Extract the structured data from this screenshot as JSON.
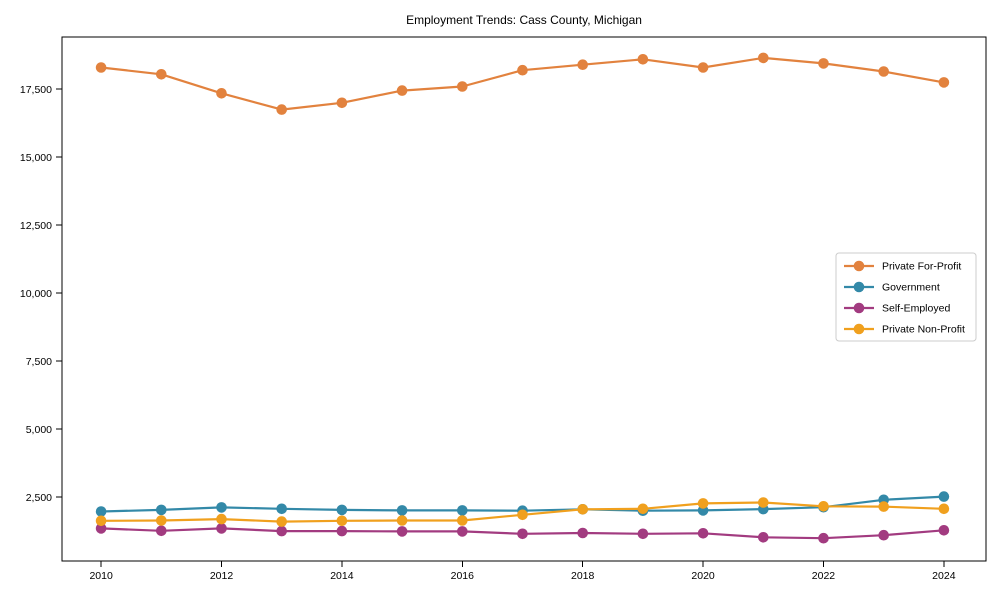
{
  "chart_data": {
    "type": "line",
    "title": "Employment Trends: Cass County, Michigan",
    "xlabel": "",
    "ylabel": "",
    "grid": false,
    "legend_position": "center-right",
    "xlim": [
      2009.35,
      2024.7
    ],
    "ylim": [
      150,
      19420
    ],
    "x": [
      2010,
      2011,
      2012,
      2013,
      2014,
      2015,
      2016,
      2017,
      2018,
      2019,
      2020,
      2021,
      2022,
      2023,
      2024
    ],
    "x_ticks": [
      2010,
      2012,
      2014,
      2016,
      2018,
      2020,
      2022,
      2024
    ],
    "x_tick_labels": [
      "2010",
      "2012",
      "2014",
      "2016",
      "2018",
      "2020",
      "2022",
      "2024"
    ],
    "y_ticks": [
      2500,
      5000,
      7500,
      10000,
      12500,
      15000,
      17500
    ],
    "y_tick_labels": [
      "2,500",
      "5,000",
      "7,500",
      "10,000",
      "12,500",
      "15,000",
      "17,500"
    ],
    "series": [
      {
        "name": "Private For-Profit",
        "color": "#e2823e",
        "values": [
          18300,
          18050,
          17350,
          16750,
          17000,
          17450,
          17600,
          18200,
          18400,
          18600,
          18300,
          18650,
          18450,
          18150,
          17750
        ]
      },
      {
        "name": "Government",
        "color": "#3389a8",
        "values": [
          1970,
          2030,
          2120,
          2070,
          2030,
          2010,
          2010,
          2000,
          2050,
          2000,
          2010,
          2060,
          2130,
          2400,
          2520
        ]
      },
      {
        "name": "Self-Employed",
        "color": "#a23b80",
        "values": [
          1350,
          1260,
          1350,
          1250,
          1250,
          1240,
          1240,
          1150,
          1180,
          1150,
          1170,
          1020,
          990,
          1100,
          1280
        ]
      },
      {
        "name": "Private Non-Profit",
        "color": "#f0a01e",
        "values": [
          1630,
          1640,
          1690,
          1600,
          1630,
          1640,
          1640,
          1850,
          2050,
          2070,
          2270,
          2300,
          2160,
          2150,
          2070
        ]
      }
    ]
  }
}
